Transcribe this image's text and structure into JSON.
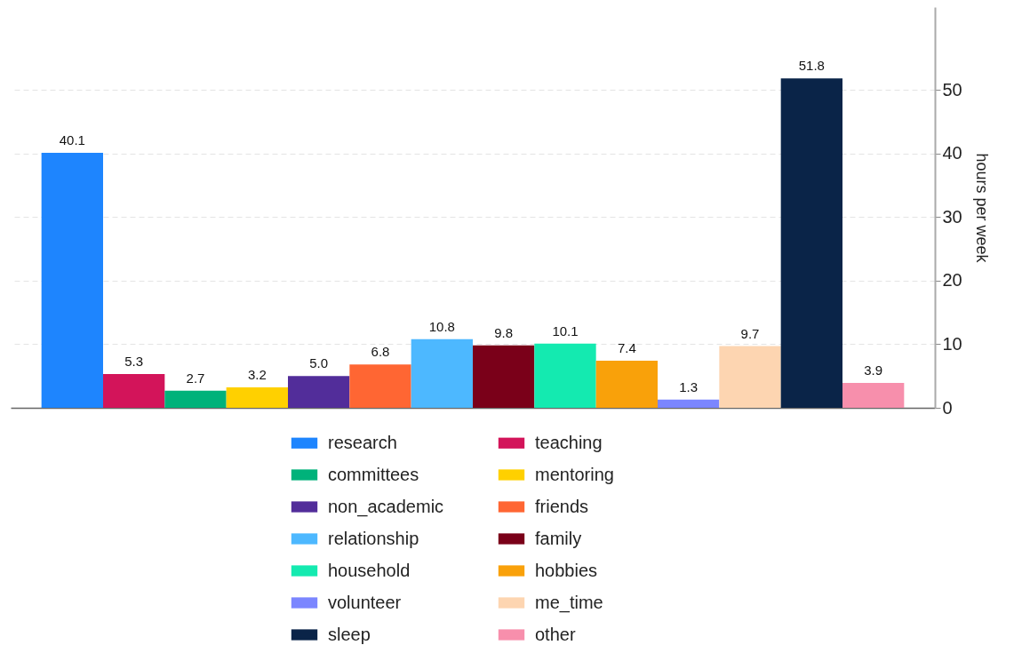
{
  "chart_data": {
    "type": "bar",
    "ylabel": "hours per week",
    "categories": [
      null,
      null,
      null,
      null,
      null,
      null,
      null,
      null,
      null,
      null,
      null,
      null,
      null,
      null
    ],
    "series": [
      {
        "name": "research",
        "color": "#1e85fe",
        "values": [
          40.1,
          null,
          null,
          null,
          null,
          null,
          null,
          null,
          null,
          null,
          null,
          null,
          null,
          null
        ]
      },
      {
        "name": "teaching",
        "color": "#d3145a",
        "values": [
          null,
          5.3,
          null,
          null,
          null,
          null,
          null,
          null,
          null,
          null,
          null,
          null,
          null,
          null
        ]
      },
      {
        "name": "committees",
        "color": "#00b27a",
        "values": [
          null,
          null,
          2.7,
          null,
          null,
          null,
          null,
          null,
          null,
          null,
          null,
          null,
          null,
          null
        ]
      },
      {
        "name": "mentoring",
        "color": "#ffd000",
        "values": [
          null,
          null,
          null,
          3.2,
          null,
          null,
          null,
          null,
          null,
          null,
          null,
          null,
          null,
          null
        ]
      },
      {
        "name": "non_academic",
        "color": "#522d9a",
        "values": [
          null,
          null,
          null,
          null,
          5.0,
          null,
          null,
          null,
          null,
          null,
          null,
          null,
          null,
          null
        ],
        "value_labels": [
          null,
          null,
          null,
          null,
          "5.0",
          null,
          null,
          null,
          null,
          null,
          null,
          null,
          null,
          null
        ]
      },
      {
        "name": "friends",
        "color": "#ff6633",
        "values": [
          null,
          null,
          null,
          null,
          null,
          6.8,
          null,
          null,
          null,
          null,
          null,
          null,
          null,
          null
        ]
      },
      {
        "name": "relationship",
        "color": "#4db8ff",
        "values": [
          null,
          null,
          null,
          null,
          null,
          null,
          10.8,
          null,
          null,
          null,
          null,
          null,
          null,
          null
        ]
      },
      {
        "name": "family",
        "color": "#7a0019",
        "values": [
          null,
          null,
          null,
          null,
          null,
          null,
          null,
          9.8,
          null,
          null,
          null,
          null,
          null,
          null
        ]
      },
      {
        "name": "household",
        "color": "#14eab0",
        "values": [
          null,
          null,
          null,
          null,
          null,
          null,
          null,
          null,
          10.1,
          null,
          null,
          null,
          null,
          null
        ]
      },
      {
        "name": "hobbies",
        "color": "#f9a10a",
        "values": [
          null,
          null,
          null,
          null,
          null,
          null,
          null,
          null,
          null,
          7.4,
          null,
          null,
          null,
          null
        ]
      },
      {
        "name": "volunteer",
        "color": "#7b86ff",
        "values": [
          null,
          null,
          null,
          null,
          null,
          null,
          null,
          null,
          null,
          null,
          1.3,
          null,
          null,
          null
        ]
      },
      {
        "name": "me_time",
        "color": "#fdd5b1",
        "values": [
          null,
          null,
          null,
          null,
          null,
          null,
          null,
          null,
          null,
          null,
          null,
          9.7,
          null,
          null
        ]
      },
      {
        "name": "sleep",
        "color": "#0a2448",
        "values": [
          null,
          null,
          null,
          null,
          null,
          null,
          null,
          null,
          null,
          null,
          null,
          null,
          51.8,
          null
        ]
      },
      {
        "name": "other",
        "color": "#f78fac",
        "values": [
          null,
          null,
          null,
          null,
          null,
          null,
          null,
          null,
          null,
          null,
          null,
          null,
          null,
          3.9
        ]
      }
    ],
    "data_labels": true,
    "ylim": [
      0,
      63
    ],
    "yticks": [
      0,
      10,
      20,
      30,
      40,
      50
    ],
    "grid": "y",
    "legend": "bottom",
    "tick_labels": "y"
  }
}
